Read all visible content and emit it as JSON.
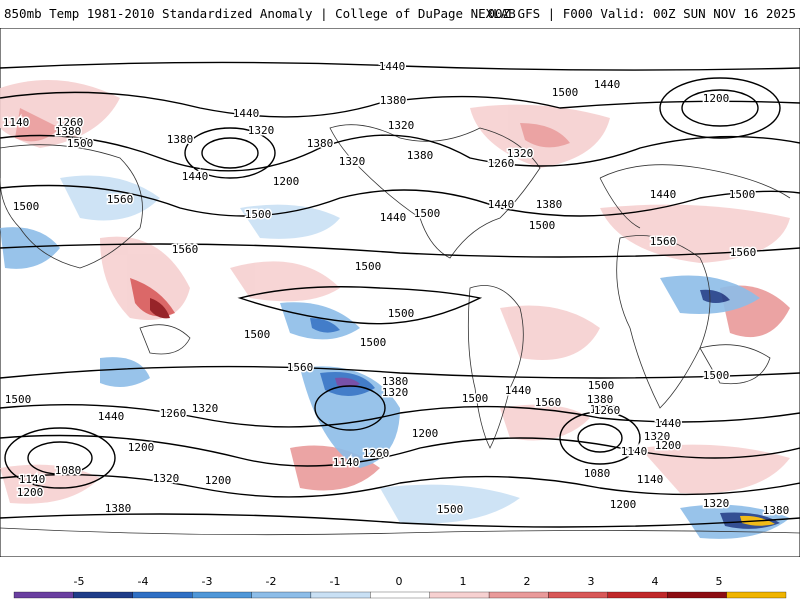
{
  "header": {
    "left": "850mb Temp 1981-2010 Standardized Anomaly | College of DuPage NEXLAB",
    "right": "00Z GFS | F000 Valid: 00Z SUN NOV 16 2025"
  },
  "colorbar": {
    "ticks": [
      "-5",
      "-4",
      "-3",
      "-2",
      "-1",
      "0",
      "1",
      "2",
      "3",
      "4",
      "5"
    ],
    "colors": [
      "#6a3fa0",
      "#1f3c88",
      "#2f6fc4",
      "#4f97d8",
      "#8dbde8",
      "#c9e0f4",
      "#ffffff",
      "#f6d0d0",
      "#e99a9a",
      "#d85858",
      "#c0282a",
      "#8c0d12",
      "#f0b400"
    ]
  },
  "contours": {
    "labels": [
      "1440",
      "1440",
      "1500",
      "1380",
      "1200",
      "1140",
      "1260",
      "1380",
      "1500",
      "1380",
      "1440",
      "1320",
      "1200",
      "1380",
      "1440",
      "1320",
      "1560",
      "1500",
      "1560",
      "1500",
      "1260",
      "1320",
      "1380",
      "1320",
      "1440",
      "1500",
      "1380",
      "1440",
      "1500",
      "1440",
      "1500",
      "1500",
      "1560",
      "1500",
      "1500",
      "1500",
      "1560",
      "1380",
      "1320",
      "1260",
      "1200",
      "1500",
      "1440",
      "1560",
      "1500",
      "1380",
      "1260",
      "1440",
      "1320",
      "1200",
      "1140",
      "1080",
      "1140",
      "1200",
      "1320",
      "1380",
      "1440",
      "1500",
      "1200",
      "1260",
      "1320",
      "1080",
      "1140",
      "1200",
      "1260",
      "1140",
      "1320",
      "1200",
      "1380",
      "1500",
      "1560",
      "1500"
    ]
  }
}
